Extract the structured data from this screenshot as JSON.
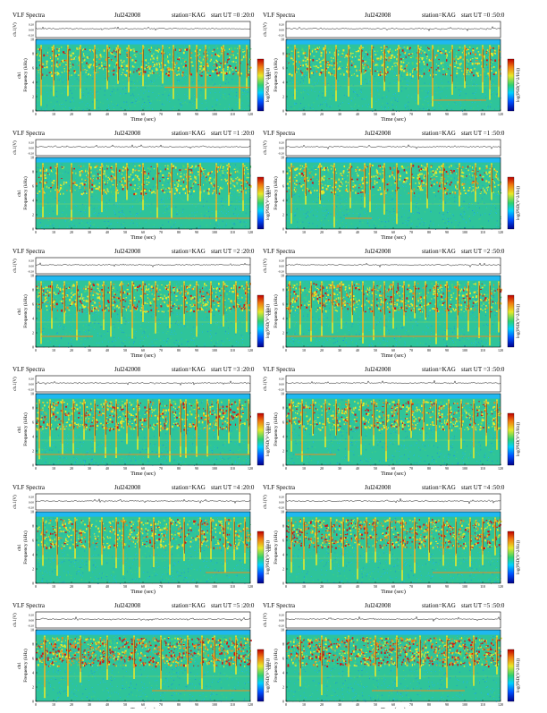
{
  "colors": {
    "sky": "#1fb8f0",
    "background_green": "#2ec49a",
    "mid_green": "#52d46a",
    "yellow": "#e8e82a",
    "orange": "#f08a1a",
    "red": "#d01818",
    "dark_red": "#700808",
    "line_black": "#000000"
  },
  "chart_data": [
    {
      "type": "heatmap",
      "title": "VLF Spectra",
      "date": "Jul242008",
      "station": "station=KAG",
      "start_label": "start  UT =0 :20:0",
      "ylabel": "Frequency (kHz)",
      "channel_label": "ch1",
      "top_panel_label": "ch.1(V)",
      "top_ticks": [
        "0.20",
        "0.00",
        "-0.20"
      ],
      "xlabel": "Time (sec)",
      "xlim": [
        0,
        120
      ],
      "ylim": [
        0,
        10
      ],
      "x_ticks": [
        0,
        10,
        20,
        30,
        40,
        50,
        60,
        70,
        80,
        90,
        100,
        110,
        120
      ],
      "y_ticks": [
        0,
        2,
        4,
        6,
        8,
        10
      ],
      "colorbar_label": "log(PSD(V^2/Hz))",
      "emission_band_khz": [
        5,
        9
      ],
      "emission_intensity": 0.45,
      "spike_times": [
        3,
        10,
        18,
        25,
        33,
        40,
        46,
        52,
        60,
        71,
        77,
        86,
        90,
        95,
        105,
        114,
        118
      ],
      "horizontal_line": {
        "freq": 3.3,
        "t_start": 72,
        "t_end": 120
      }
    },
    {
      "type": "heatmap",
      "title": "VLF Spectra",
      "date": "Jul242008",
      "station": "station=KAG",
      "start_label": "start  UT =0 :50:0",
      "ylabel": "Frequency (kHz)",
      "channel_label": "ch1",
      "top_panel_label": "ch.1(V)",
      "top_ticks": [
        "0.20",
        "0.00",
        "-0.20"
      ],
      "xlabel": "Time (sec)",
      "xlim": [
        0,
        120
      ],
      "ylim": [
        0,
        10
      ],
      "x_ticks": [
        0,
        10,
        20,
        30,
        40,
        50,
        60,
        70,
        80,
        90,
        100,
        110,
        120
      ],
      "y_ticks": [
        0,
        2,
        4,
        6,
        8,
        10
      ],
      "colorbar_label": "log(PSD(V^2/Hz))",
      "emission_band_khz": [
        5,
        9
      ],
      "emission_intensity": 0.45,
      "spike_times": [
        5,
        13,
        22,
        28,
        35,
        42,
        48,
        55,
        63,
        74,
        82,
        93,
        100,
        110,
        114,
        119
      ],
      "horizontal_line": {
        "freq": 1.5,
        "t_start": 82,
        "t_end": 112
      }
    },
    {
      "type": "heatmap",
      "title": "VLF Spectra",
      "date": "Jul242008",
      "station": "station=KAG",
      "start_label": "start  UT =1 :20:0",
      "ylabel": "Frequency (kHz)",
      "channel_label": "ch1",
      "top_panel_label": "ch.1(V)",
      "top_ticks": [
        "0.20",
        "0.00",
        "-0.20"
      ],
      "xlabel": "Time (sec)",
      "xlim": [
        0,
        120
      ],
      "ylim": [
        0,
        10
      ],
      "x_ticks": [
        0,
        10,
        20,
        30,
        40,
        50,
        60,
        70,
        80,
        90,
        100,
        110,
        120
      ],
      "y_ticks": [
        0,
        2,
        4,
        6,
        8,
        10
      ],
      "colorbar_label": "log(PSD(V^2/Hz))",
      "emission_band_khz": [
        5,
        9
      ],
      "emission_intensity": 0.4,
      "spike_times": [
        4,
        12,
        20,
        30,
        37,
        45,
        51,
        60,
        68,
        76,
        85,
        92,
        101,
        108,
        116
      ],
      "horizontal_line": {
        "freq": 1.5,
        "t_start": 0,
        "t_end": 120
      }
    },
    {
      "type": "heatmap",
      "title": "VLF Spectra",
      "date": "Jul242008",
      "station": "station=KAG",
      "start_label": "start  UT =1 :50:0",
      "ylabel": "Frequency (kHz)",
      "channel_label": "ch1",
      "top_panel_label": "ch.1(V)",
      "top_ticks": [
        "0.20",
        "0.00",
        "-0.20"
      ],
      "xlabel": "Time (sec)",
      "xlim": [
        0,
        120
      ],
      "ylim": [
        0,
        10
      ],
      "x_ticks": [
        0,
        10,
        20,
        30,
        40,
        50,
        60,
        70,
        80,
        90,
        100,
        110,
        120
      ],
      "y_ticks": [
        0,
        2,
        4,
        6,
        8,
        10
      ],
      "colorbar_label": "log(PSD(V^2/Hz))",
      "emission_band_khz": [
        5,
        9
      ],
      "emission_intensity": 0.4,
      "spike_times": [
        3,
        11,
        19,
        27,
        36,
        44,
        47,
        55,
        62,
        70,
        79,
        88,
        97,
        106,
        115
      ],
      "horizontal_line": {
        "freq": 1.5,
        "t_start": 33,
        "t_end": 48
      }
    },
    {
      "type": "heatmap",
      "title": "VLF Spectra",
      "date": "Jul242008",
      "station": "station=KAG",
      "start_label": "start  UT =2 :20:0",
      "ylabel": "Frequency (kHz)",
      "channel_label": "ch1",
      "top_panel_label": "ch.1(V)",
      "top_ticks": [
        "0.20",
        "0.00",
        "-0.20"
      ],
      "xlabel": "Time (sec)",
      "xlim": [
        0,
        120
      ],
      "ylim": [
        0,
        10
      ],
      "x_ticks": [
        0,
        10,
        20,
        30,
        40,
        50,
        60,
        70,
        80,
        90,
        100,
        110,
        120
      ],
      "y_ticks": [
        0,
        2,
        4,
        6,
        8,
        10
      ],
      "colorbar_label": "log(PSD(V^2/Hz))",
      "emission_band_khz": [
        5,
        9
      ],
      "emission_intensity": 0.55,
      "spike_times": [
        3,
        9,
        16,
        23,
        30,
        38,
        42,
        48,
        54,
        60,
        67,
        75,
        83,
        90,
        98,
        105,
        112,
        118
      ],
      "horizontal_line": {
        "freq": 1.5,
        "t_start": 3,
        "t_end": 32
      }
    },
    {
      "type": "heatmap",
      "title": "VLF Spectra",
      "date": "Jul242008",
      "station": "station=KAG",
      "start_label": "start  UT =2 :50:0",
      "ylabel": "Frequency (kHz)",
      "channel_label": "ch1",
      "top_panel_label": "ch.1(V)",
      "top_ticks": [
        "0.20",
        "0.00",
        "-0.20"
      ],
      "xlabel": "Time (sec)",
      "xlim": [
        0,
        120
      ],
      "ylim": [
        0,
        10
      ],
      "x_ticks": [
        0,
        10,
        20,
        30,
        40,
        50,
        60,
        70,
        80,
        90,
        100,
        110,
        120
      ],
      "y_ticks": [
        0,
        2,
        4,
        6,
        8,
        10
      ],
      "colorbar_label": "log(PSD(V^2/Hz))",
      "emission_band_khz": [
        5,
        9
      ],
      "emission_intensity": 0.6,
      "spike_times": [
        2,
        8,
        14,
        20,
        26,
        31,
        37,
        43,
        49,
        55,
        60,
        66,
        72,
        78,
        84,
        90,
        96,
        102,
        108,
        114,
        119
      ],
      "horizontal_line": {
        "freq": 1.5,
        "t_start": 0,
        "t_end": 120
      }
    },
    {
      "type": "heatmap",
      "title": "VLF Spectra",
      "date": "Jul242008",
      "station": "station=KAG",
      "start_label": "start  UT =3 :20:0",
      "ylabel": "Frequency (kHz)",
      "channel_label": "ch1",
      "top_panel_label": "ch.1(V)",
      "top_ticks": [
        "0.20",
        "0.00",
        "-0.20"
      ],
      "xlabel": "Time (sec)",
      "xlim": [
        0,
        120
      ],
      "ylim": [
        0,
        10
      ],
      "x_ticks": [
        0,
        10,
        20,
        30,
        40,
        50,
        60,
        70,
        80,
        90,
        100,
        110,
        120
      ],
      "y_ticks": [
        0,
        2,
        4,
        6,
        8,
        10
      ],
      "colorbar_label": "log(PSD(V^2/Hz))",
      "emission_band_khz": [
        5,
        9
      ],
      "emission_intensity": 0.6,
      "spike_times": [
        2,
        8,
        15,
        21,
        27,
        33,
        39,
        45,
        51,
        57,
        63,
        69,
        75,
        81,
        84,
        90,
        96,
        102,
        108,
        114,
        119
      ],
      "horizontal_line": {
        "freq": 1.5,
        "t_start": 0,
        "t_end": 120
      }
    },
    {
      "type": "heatmap",
      "title": "VLF Spectra",
      "date": "Jul242008",
      "station": "station=KAG",
      "start_label": "start  UT =3 :50:0",
      "ylabel": "Frequency (kHz)",
      "channel_label": "ch1",
      "top_panel_label": "ch.1(V)",
      "top_ticks": [
        "0.20",
        "0.00",
        "-0.20"
      ],
      "xlabel": "Time (sec)",
      "xlim": [
        0,
        120
      ],
      "ylim": [
        0,
        10
      ],
      "x_ticks": [
        0,
        10,
        20,
        30,
        40,
        50,
        60,
        70,
        80,
        90,
        100,
        110,
        120
      ],
      "y_ticks": [
        0,
        2,
        4,
        6,
        8,
        10
      ],
      "colorbar_label": "log(PSD(V^2/Hz))",
      "emission_band_khz": [
        5,
        9
      ],
      "emission_intensity": 0.55,
      "spike_times": [
        3,
        9,
        15,
        22,
        28,
        35,
        42,
        49,
        56,
        63,
        70,
        77,
        84,
        91,
        98,
        105,
        112,
        118
      ],
      "horizontal_line": {
        "freq": 1.5,
        "t_start": 5,
        "t_end": 28
      }
    },
    {
      "type": "heatmap",
      "title": "VLF Spectra",
      "date": "Jul242008",
      "station": "station=KAG",
      "start_label": "start  UT =4 :20:0",
      "ylabel": "Frequency (kHz)",
      "channel_label": "ch1",
      "top_panel_label": "ch.1(V)",
      "top_ticks": [
        "0.20",
        "0.00",
        "-0.20"
      ],
      "xlabel": "Time (sec)",
      "xlim": [
        0,
        120
      ],
      "ylim": [
        0,
        10
      ],
      "x_ticks": [
        0,
        10,
        20,
        30,
        40,
        50,
        60,
        70,
        80,
        90,
        100,
        110,
        120
      ],
      "y_ticks": [
        0,
        2,
        4,
        6,
        8,
        10
      ],
      "colorbar_label": "log(PSD(V^2/Hz))",
      "emission_band_khz": [
        5,
        9
      ],
      "emission_intensity": 0.5,
      "spike_times": [
        4,
        12,
        22,
        30,
        37,
        45,
        49,
        58,
        66,
        75,
        83,
        92,
        98,
        106,
        111,
        117
      ],
      "horizontal_line": {
        "freq": 1.5,
        "t_start": 95,
        "t_end": 120
      }
    },
    {
      "type": "heatmap",
      "title": "VLF Spectra",
      "date": "Jul242008",
      "station": "station=KAG",
      "start_label": "start  UT =4 :50:0",
      "ylabel": "Frequency (kHz)",
      "channel_label": "ch1",
      "top_panel_label": "ch.1(V)",
      "top_ticks": [
        "0.20",
        "0.00",
        "-0.20"
      ],
      "xlabel": "Time (sec)",
      "xlim": [
        0,
        120
      ],
      "ylim": [
        0,
        10
      ],
      "x_ticks": [
        0,
        10,
        20,
        30,
        40,
        50,
        60,
        70,
        80,
        90,
        100,
        110,
        120
      ],
      "y_ticks": [
        0,
        2,
        4,
        6,
        8,
        10
      ],
      "colorbar_label": "log(PSD(V^2/Hz))",
      "emission_band_khz": [
        5,
        9
      ],
      "emission_intensity": 0.8,
      "spike_times": [
        3,
        10,
        17,
        25,
        32,
        40,
        45,
        50,
        58,
        65,
        72,
        80,
        88,
        95,
        103,
        110,
        117
      ],
      "horizontal_line": {
        "freq": 1.5,
        "t_start": 82,
        "t_end": 120
      }
    },
    {
      "type": "heatmap",
      "title": "VLF Spectra",
      "date": "Jul242008",
      "station": "station=KAG",
      "start_label": "start  UT =5 :20:0",
      "ylabel": "Frequency (kHz)",
      "channel_label": "ch1",
      "top_panel_label": "ch.1(V)",
      "top_ticks": [
        "0.20",
        "0.00",
        "-0.20"
      ],
      "xlabel": "Time (sec)",
      "xlim": [
        0,
        120
      ],
      "ylim": [
        0,
        10
      ],
      "x_ticks": [
        0,
        10,
        20,
        30,
        40,
        50,
        60,
        70,
        80,
        90,
        100,
        110,
        120
      ],
      "y_ticks": [
        0,
        2,
        4,
        6,
        8,
        10
      ],
      "colorbar_label": "log(PSD(V^2/Hz))",
      "emission_band_khz": [
        5,
        9
      ],
      "emission_intensity": 0.95,
      "spike_times": [
        5,
        18,
        25,
        40,
        55,
        70,
        85,
        93,
        100,
        112
      ],
      "horizontal_line": {
        "freq": 1.5,
        "t_start": 65,
        "t_end": 120
      }
    },
    {
      "type": "heatmap",
      "title": "VLF Spectra",
      "date": "Jul242008",
      "station": "station=KAG",
      "start_label": "start  UT =5 :50:0",
      "ylabel": "Frequency (kHz)",
      "channel_label": "ch1",
      "top_panel_label": "ch.1(V)",
      "top_ticks": [
        "0.20",
        "0.00",
        "-0.20"
      ],
      "xlabel": "Time (sec)",
      "xlim": [
        0,
        120
      ],
      "ylim": [
        0,
        10
      ],
      "x_ticks": [
        0,
        10,
        20,
        30,
        40,
        50,
        60,
        70,
        80,
        90,
        100,
        110,
        120
      ],
      "y_ticks": [
        0,
        2,
        4,
        6,
        8,
        10
      ],
      "colorbar_label": "log(PSD(V^2/Hz))",
      "emission_band_khz": [
        5,
        9
      ],
      "emission_intensity": 0.95,
      "spike_times": [
        8,
        20,
        35,
        50,
        62,
        75,
        90,
        105,
        118
      ],
      "horizontal_line": {
        "freq": 1.5,
        "t_start": 48,
        "t_end": 100
      }
    }
  ]
}
